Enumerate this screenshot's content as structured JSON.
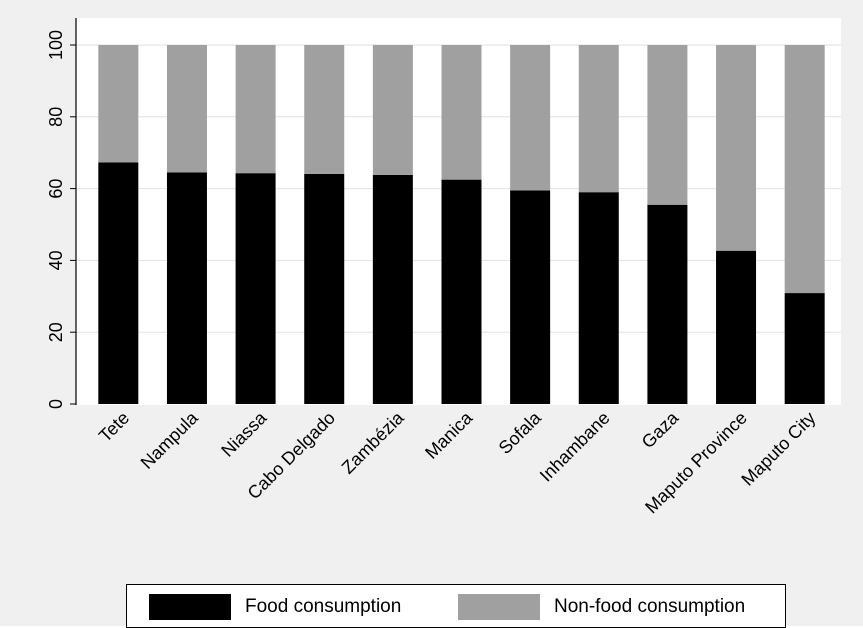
{
  "chart_data": {
    "type": "bar",
    "stacked": true,
    "title": "",
    "xlabel": "",
    "ylabel": "",
    "ylim": [
      0,
      100
    ],
    "yticks": [
      0,
      20,
      40,
      60,
      80,
      100
    ],
    "grid": true,
    "legend_position": "bottom",
    "categories": [
      "Tete",
      "Nampula",
      "Niassa",
      "Cabo Delgado",
      "Zambézia",
      "Manica",
      "Sofala",
      "Inhambane",
      "Gaza",
      "Maputo Province",
      "Maputo City"
    ],
    "series": [
      {
        "name": "Food consumption",
        "color": "#000000",
        "values": [
          67.3,
          64.5,
          64.3,
          64.1,
          63.8,
          62.5,
          59.5,
          59.0,
          55.5,
          42.7,
          30.9
        ]
      },
      {
        "name": "Non-food consumption",
        "color": "#a0a0a0",
        "values": [
          32.7,
          35.5,
          35.7,
          35.9,
          36.2,
          37.5,
          40.5,
          41.0,
          44.5,
          57.3,
          69.1
        ]
      }
    ]
  }
}
